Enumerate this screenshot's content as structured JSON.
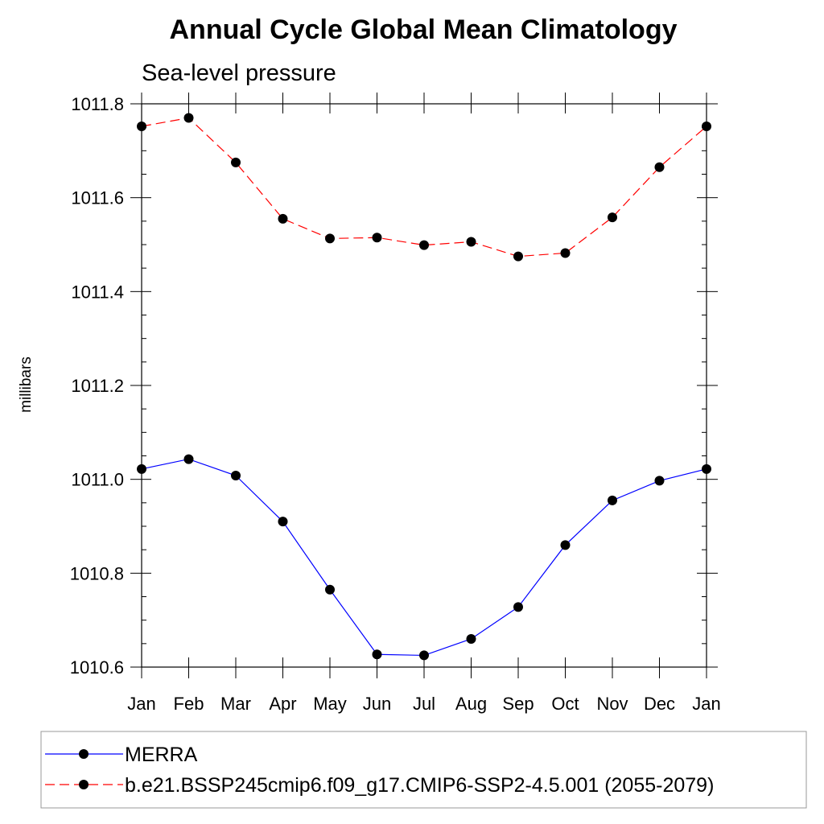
{
  "chart_data": {
    "type": "line",
    "title": "Annual Cycle Global Mean Climatology",
    "subtitle": "Sea-level pressure",
    "xlabel": "",
    "ylabel": "millibars",
    "categories": [
      "Jan",
      "Feb",
      "Mar",
      "Apr",
      "May",
      "Jun",
      "Jul",
      "Aug",
      "Sep",
      "Oct",
      "Nov",
      "Dec",
      "Jan"
    ],
    "ylim": [
      1010.6,
      1011.8
    ],
    "yticks": [
      "1010.6",
      "1010.8",
      "1011.0",
      "1011.2",
      "1011.4",
      "1011.6",
      "1011.8"
    ],
    "series": [
      {
        "name": "MERRA",
        "color": "#0000ff",
        "line_style": "solid",
        "marker": "filled-circle",
        "values": [
          1011.022,
          1011.043,
          1011.008,
          1010.91,
          1010.765,
          1010.627,
          1010.625,
          1010.66,
          1010.728,
          1010.86,
          1010.955,
          1010.997,
          1011.022
        ]
      },
      {
        "name": "b.e21.BSSP245cmip6.f09_g17.CMIP6-SSP2-4.5.001 (2055-2079)",
        "color": "#ff0000",
        "line_style": "dashed",
        "marker": "filled-circle",
        "values": [
          1011.752,
          1011.77,
          1011.675,
          1011.555,
          1011.513,
          1011.515,
          1011.499,
          1011.506,
          1011.475,
          1011.482,
          1011.558,
          1011.665,
          1011.752
        ]
      }
    ],
    "legend_position": "bottom"
  }
}
